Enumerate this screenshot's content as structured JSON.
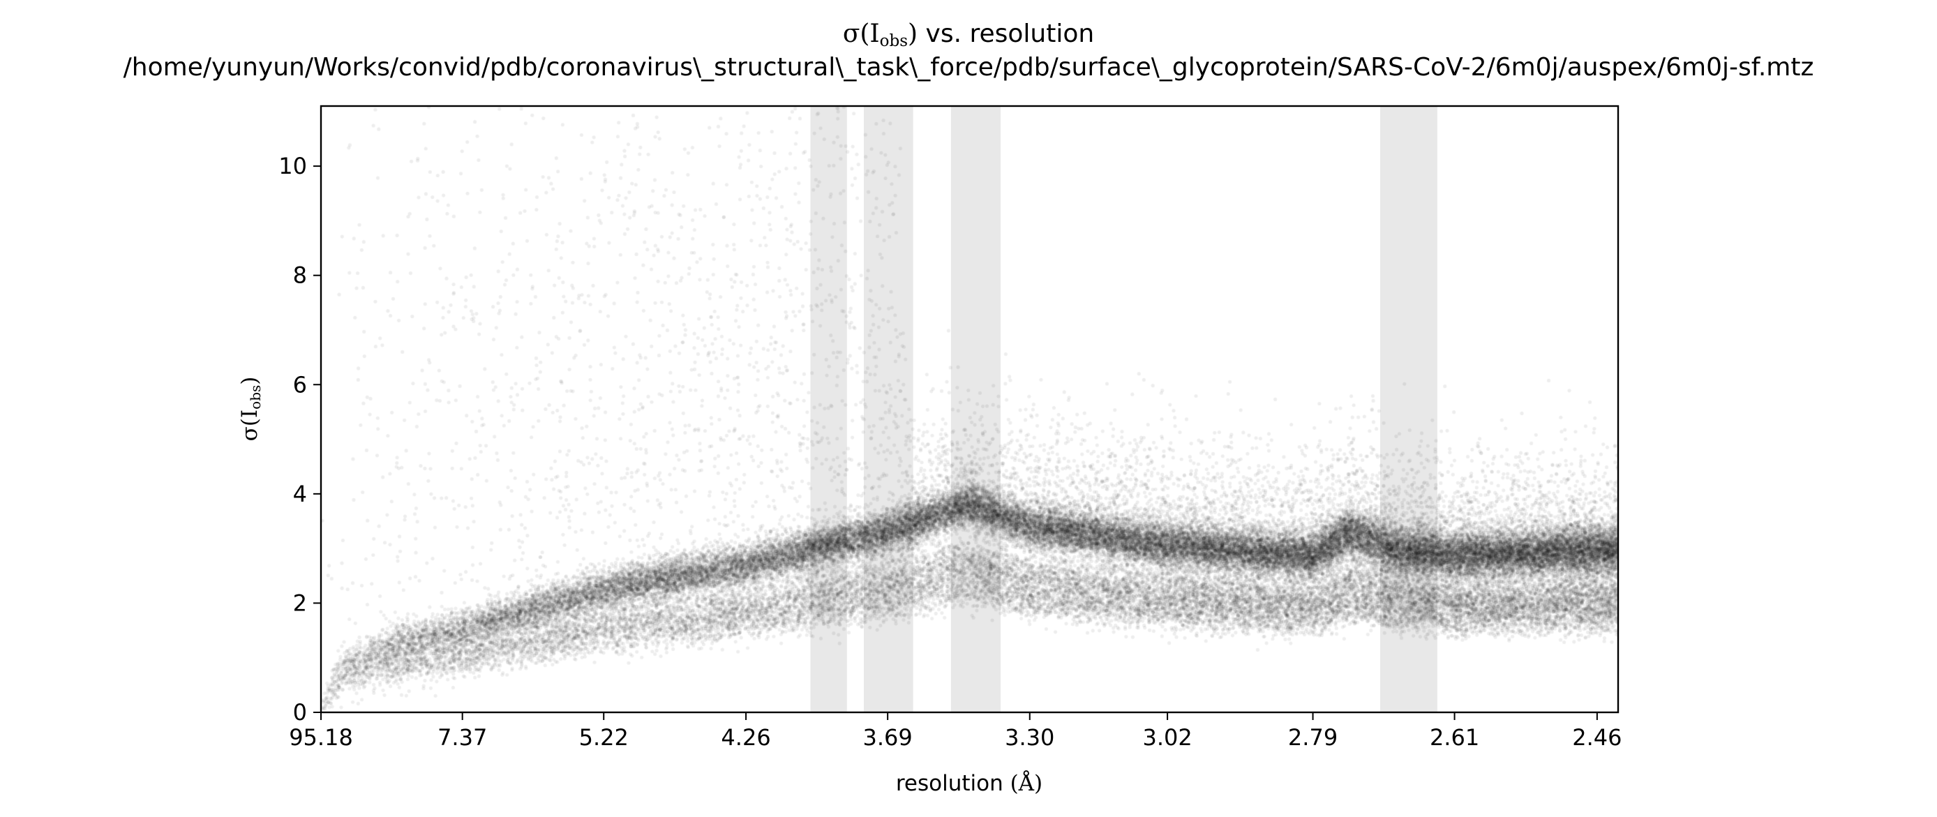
{
  "chart_data": {
    "type": "scatter",
    "title": {
      "line1_sym": "σ(I",
      "line1_sub": "obs",
      "line1_close": ")",
      "line1_rest": " vs. resolution",
      "line2": "/home/yunyun/Works/convid/pdb/coronavirus\\_structural\\_task\\_force/pdb/surface\\_glycoprotein/SARS-CoV-2/6m0j/auspex/6m0j-sf.mtz"
    },
    "xlabel": {
      "text": "resolution ",
      "unit": "(Å)"
    },
    "ylabel": {
      "sym": "σ(I",
      "sub": "obs",
      "close": ")"
    },
    "x_scale": "inverse-square resolution (1/d²)",
    "x_ticks": [
      "95.18",
      "7.37",
      "5.22",
      "4.26",
      "3.69",
      "3.30",
      "3.02",
      "2.79",
      "2.61",
      "2.46"
    ],
    "x_range_resolution": [
      95.18,
      2.44
    ],
    "ylim": [
      0,
      11.1
    ],
    "y_ticks": [
      0,
      2,
      4,
      6,
      8,
      10
    ],
    "grid": false,
    "point_color": "#000000",
    "point_opacity": 0.07,
    "ice_ring_color": "#e8e8e8",
    "ice_ring_bands_resolution": [
      [
        3.97,
        3.83
      ],
      [
        3.77,
        3.61
      ],
      [
        3.5,
        3.37
      ],
      [
        2.7,
        2.63
      ]
    ],
    "density_trend": [
      {
        "resolution": 95.18,
        "sigma": 0.1
      },
      {
        "resolution": 20.0,
        "sigma": 0.8
      },
      {
        "resolution": 9.5,
        "sigma": 1.3
      },
      {
        "resolution": 7.37,
        "sigma": 1.5
      },
      {
        "resolution": 6.0,
        "sigma": 1.9
      },
      {
        "resolution": 5.22,
        "sigma": 2.25
      },
      {
        "resolution": 4.5,
        "sigma": 2.55
      },
      {
        "resolution": 4.26,
        "sigma": 2.7
      },
      {
        "resolution": 3.69,
        "sigma": 3.3
      },
      {
        "resolution": 3.45,
        "sigma": 3.8
      },
      {
        "resolution": 3.3,
        "sigma": 3.4
      },
      {
        "resolution": 3.02,
        "sigma": 3.05
      },
      {
        "resolution": 2.86,
        "sigma": 2.9
      },
      {
        "resolution": 2.79,
        "sigma": 2.85
      },
      {
        "resolution": 2.74,
        "sigma": 3.3
      },
      {
        "resolution": 2.68,
        "sigma": 2.95
      },
      {
        "resolution": 2.61,
        "sigma": 2.85
      },
      {
        "resolution": 2.46,
        "sigma": 2.95
      }
    ]
  }
}
